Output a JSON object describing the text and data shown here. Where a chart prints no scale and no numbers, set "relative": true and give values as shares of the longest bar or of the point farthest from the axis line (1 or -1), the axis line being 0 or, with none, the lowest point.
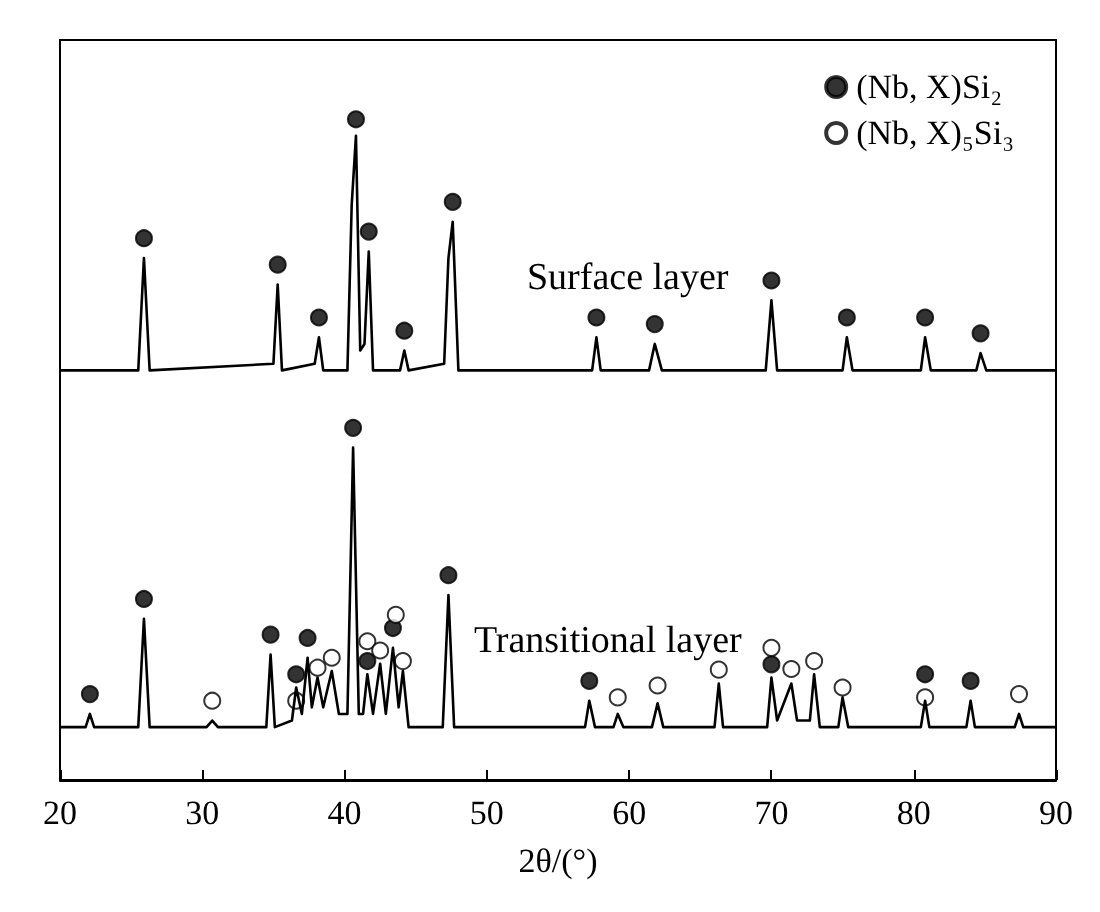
{
  "chart_data": {
    "type": "line",
    "xlabel": "2θ/(°)",
    "relative": true,
    "xlim": [
      20,
      90
    ],
    "xticks": [
      20,
      30,
      40,
      50,
      60,
      70,
      80,
      90
    ],
    "legend": "top right",
    "grid": false,
    "series": [
      {
        "name": "Surface layer",
        "color": "#000000",
        "x": [
          20,
          25.5,
          25.9,
          26.3,
          35,
          35.3,
          35.6,
          37.9,
          38.2,
          38.5,
          40.2,
          40.5,
          40.8,
          41.1,
          41.4,
          41.7,
          42,
          43.9,
          44.2,
          44.5,
          47,
          47.3,
          47.6,
          48,
          57.4,
          57.7,
          58,
          61.4,
          61.8,
          62.3,
          69.6,
          70,
          70.4,
          75,
          75.3,
          75.7,
          80.5,
          80.8,
          81.2,
          84.4,
          84.7,
          85.1,
          90
        ],
        "values": [
          0.62,
          0.62,
          0.79,
          0.62,
          0.63,
          0.75,
          0.62,
          0.63,
          0.67,
          0.62,
          0.62,
          0.87,
          0.975,
          0.65,
          0.66,
          0.8,
          0.62,
          0.62,
          0.65,
          0.62,
          0.63,
          0.79,
          0.845,
          0.62,
          0.62,
          0.67,
          0.62,
          0.62,
          0.66,
          0.62,
          0.62,
          0.726,
          0.62,
          0.62,
          0.67,
          0.62,
          0.62,
          0.67,
          0.62,
          0.62,
          0.646,
          0.62,
          0.62
        ]
      },
      {
        "name": "Transitional layer",
        "color": "#000000",
        "x": [
          20,
          21.8,
          22.1,
          22.4,
          25.5,
          25.9,
          26.3,
          30.3,
          30.7,
          31.1,
          34.5,
          34.8,
          35.1,
          36.3,
          36.6,
          37,
          37.4,
          37.7,
          38.1,
          38.5,
          39.1,
          39.6,
          40.2,
          40.6,
          41,
          41.3,
          41.6,
          42,
          42.5,
          42.9,
          43.4,
          43.8,
          44.1,
          44.5,
          46.9,
          47.3,
          47.7,
          56.9,
          57.2,
          57.6,
          58.9,
          59.2,
          59.6,
          61.6,
          62,
          62.4,
          66,
          66.3,
          66.6,
          69.7,
          70,
          70.4,
          71.4,
          71.8,
          72.7,
          73,
          73.4,
          74.7,
          75,
          75.4,
          80.5,
          80.8,
          81.1,
          83.7,
          84,
          84.3,
          87.1,
          87.4,
          87.7,
          90
        ],
        "values": [
          0.08,
          0.08,
          0.1,
          0.08,
          0.08,
          0.244,
          0.08,
          0.08,
          0.09,
          0.08,
          0.08,
          0.19,
          0.08,
          0.09,
          0.14,
          0.1,
          0.185,
          0.11,
          0.155,
          0.11,
          0.165,
          0.1,
          0.1,
          0.503,
          0.1,
          0.1,
          0.16,
          0.1,
          0.176,
          0.1,
          0.2,
          0.11,
          0.165,
          0.08,
          0.08,
          0.28,
          0.08,
          0.08,
          0.12,
          0.08,
          0.08,
          0.1,
          0.08,
          0.08,
          0.116,
          0.08,
          0.08,
          0.146,
          0.08,
          0.08,
          0.155,
          0.09,
          0.146,
          0.09,
          0.09,
          0.16,
          0.08,
          0.08,
          0.125,
          0.08,
          0.08,
          0.12,
          0.08,
          0.08,
          0.12,
          0.08,
          0.08,
          0.1,
          0.08,
          0.08
        ]
      },
      {
        "name": "(Nb, X)Si₂",
        "type": "scatter",
        "marker": "circle",
        "color": "#000000",
        "x": [
          25.9,
          35.3,
          38.2,
          40.8,
          41.7,
          44.2,
          47.6,
          57.7,
          61.8,
          70,
          75.3,
          80.8,
          84.7,
          22.1,
          25.9,
          34.8,
          36.6,
          37.4,
          40.6,
          41.6,
          43.4,
          47.3,
          57.2,
          70,
          80.8,
          84
        ],
        "values": [
          0.82,
          0.78,
          0.7,
          1.0,
          0.83,
          0.68,
          0.875,
          0.7,
          0.69,
          0.756,
          0.7,
          0.7,
          0.676,
          0.13,
          0.274,
          0.22,
          0.16,
          0.215,
          0.533,
          0.18,
          0.23,
          0.31,
          0.15,
          0.175,
          0.16,
          0.15
        ]
      },
      {
        "name": "(Nb, X)₅Si₃",
        "type": "scatter",
        "marker": "circle",
        "color": "#ffffff",
        "x": [
          30.7,
          36.6,
          38.1,
          39.1,
          41.6,
          42.5,
          43.6,
          44.1,
          59.2,
          62,
          66.3,
          70,
          71.4,
          73,
          75,
          80.8,
          87.4
        ],
        "values": [
          0.12,
          0.12,
          0.17,
          0.185,
          0.21,
          0.196,
          0.25,
          0.18,
          0.125,
          0.143,
          0.167,
          0.2,
          0.168,
          0.18,
          0.14,
          0.125,
          0.13
        ]
      }
    ]
  }
}
